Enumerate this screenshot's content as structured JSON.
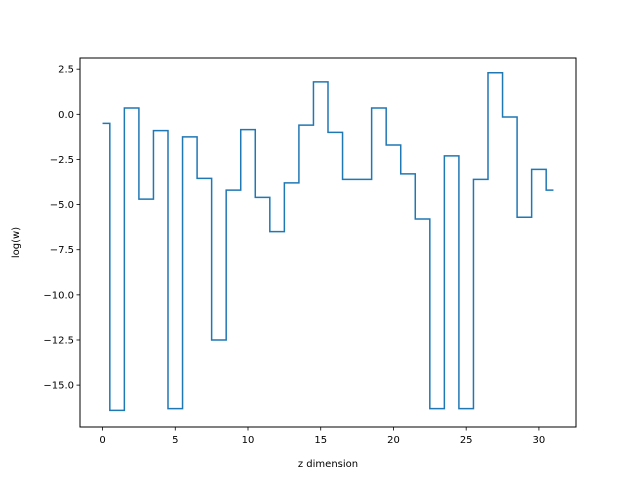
{
  "chart_data": {
    "type": "line",
    "drawstyle": "steps-mid",
    "title": "",
    "xlabel": "z dimension",
    "ylabel": "log(w)",
    "xlim": [
      -1.55,
      32.55
    ],
    "ylim": [
      -17.32,
      3.12
    ],
    "xticks": [
      0,
      5,
      10,
      15,
      20,
      25,
      30
    ],
    "xtick_labels": [
      "0",
      "5",
      "10",
      "15",
      "20",
      "25",
      "30"
    ],
    "yticks": [
      2.5,
      0.0,
      -2.5,
      -5.0,
      -7.5,
      -10.0,
      -12.5,
      -15.0
    ],
    "ytick_labels": [
      "2.5",
      "0.0",
      "−2.5",
      "−5.0",
      "−7.5",
      "−10.0",
      "−12.5",
      "−15.0"
    ],
    "grid": false,
    "series": [
      {
        "color": "#1f77b4",
        "x": [
          0,
          1,
          2,
          3,
          4,
          5,
          6,
          7,
          8,
          9,
          10,
          11,
          12,
          13,
          14,
          15,
          16,
          17,
          18,
          19,
          20,
          21,
          22,
          23,
          24,
          25,
          26,
          27,
          28,
          29,
          30,
          31
        ],
        "y": [
          -0.5,
          -16.4,
          0.35,
          -4.7,
          -0.9,
          -16.3,
          -1.25,
          -3.55,
          -12.5,
          -4.2,
          -0.85,
          -4.6,
          -6.5,
          -3.8,
          -0.6,
          1.8,
          -1.0,
          -3.6,
          -3.6,
          0.35,
          -1.7,
          -3.3,
          -5.8,
          -16.3,
          -2.3,
          -16.3,
          -3.6,
          2.3,
          -0.15,
          -5.7,
          -3.05,
          -4.2
        ]
      }
    ]
  }
}
